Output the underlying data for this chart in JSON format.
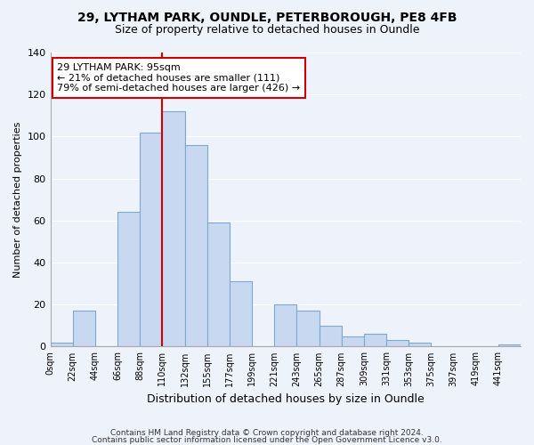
{
  "title1": "29, LYTHAM PARK, OUNDLE, PETERBOROUGH, PE8 4FB",
  "title2": "Size of property relative to detached houses in Oundle",
  "xlabel": "Distribution of detached houses by size in Oundle",
  "ylabel": "Number of detached properties",
  "bar_labels": [
    "0sqm",
    "22sqm",
    "44sqm",
    "66sqm",
    "88sqm",
    "110sqm",
    "132sqm",
    "155sqm",
    "177sqm",
    "199sqm",
    "221sqm",
    "243sqm",
    "265sqm",
    "287sqm",
    "309sqm",
    "331sqm",
    "353sqm",
    "375sqm",
    "397sqm",
    "419sqm",
    "441sqm"
  ],
  "bar_heights": [
    2,
    17,
    0,
    64,
    102,
    112,
    96,
    59,
    31,
    0,
    20,
    17,
    10,
    5,
    6,
    3,
    2,
    0,
    0,
    0,
    1
  ],
  "bar_color": "#c8d8f0",
  "bar_edge_color": "#7aaad0",
  "vline_x": 5,
  "vline_color": "#cc0000",
  "annotation_text": "29 LYTHAM PARK: 95sqm\n← 21% of detached houses are smaller (111)\n79% of semi-detached houses are larger (426) →",
  "annotation_box_color": "#ffffff",
  "annotation_box_edge": "#cc0000",
  "ylim": [
    0,
    140
  ],
  "yticks": [
    0,
    20,
    40,
    60,
    80,
    100,
    120,
    140
  ],
  "footer1": "Contains HM Land Registry data © Crown copyright and database right 2024.",
  "footer2": "Contains public sector information licensed under the Open Government Licence v3.0.",
  "background_color": "#eef2fb",
  "grid_color": "#ffffff",
  "title1_fontsize": 10,
  "title2_fontsize": 9,
  "ylabel_fontsize": 8,
  "xlabel_fontsize": 9,
  "tick_fontsize": 7,
  "annot_fontsize": 8,
  "footer_fontsize": 6.5
}
